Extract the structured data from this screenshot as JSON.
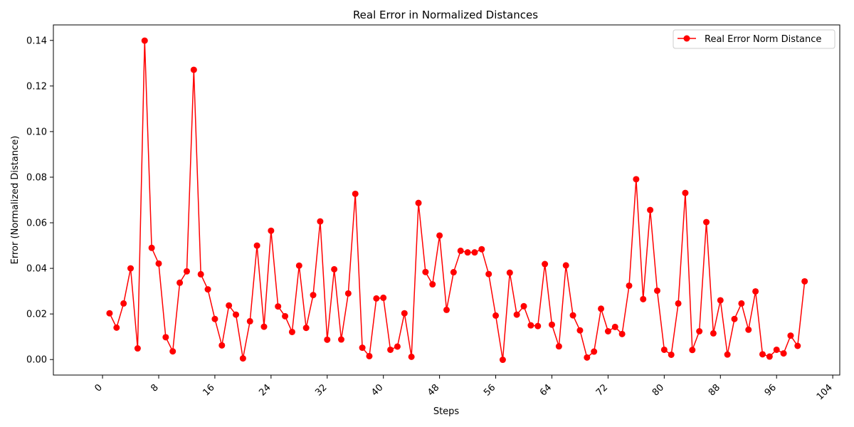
{
  "chart_data": {
    "type": "line",
    "title": "Real Error in Normalized Distances",
    "xlabel": "Steps",
    "ylabel": "Error (Normalized Distance)",
    "xlim": [
      -7,
      105
    ],
    "ylim": [
      -0.0068,
      0.1468
    ],
    "xticks": [
      0,
      8,
      16,
      24,
      32,
      40,
      48,
      56,
      64,
      72,
      80,
      88,
      96,
      104
    ],
    "xtick_labels": [
      "0",
      "8",
      "16",
      "24",
      "32",
      "40",
      "48",
      "56",
      "64",
      "72",
      "80",
      "88",
      "96",
      "104"
    ],
    "yticks": [
      0.0,
      0.02,
      0.04,
      0.06,
      0.08,
      0.1,
      0.12,
      0.14
    ],
    "ytick_labels": [
      "0.00",
      "0.02",
      "0.04",
      "0.06",
      "0.08",
      "0.10",
      "0.12",
      "0.14"
    ],
    "grid": false,
    "legend_position": "top-right",
    "color": "#ff0000",
    "series": [
      {
        "name": "Real Error Norm Distance",
        "x": [
          1,
          2,
          3,
          4,
          5,
          6,
          7,
          8,
          9,
          10,
          11,
          12,
          13,
          14,
          15,
          16,
          17,
          18,
          19,
          20,
          21,
          22,
          23,
          24,
          25,
          26,
          27,
          28,
          29,
          30,
          31,
          32,
          33,
          34,
          35,
          36,
          37,
          38,
          39,
          40,
          41,
          42,
          43,
          44,
          45,
          46,
          47,
          48,
          49,
          50,
          51,
          52,
          53,
          54,
          55,
          56,
          57,
          58,
          59,
          60,
          61,
          62,
          63,
          64,
          65,
          66,
          67,
          68,
          69,
          70,
          71,
          72,
          73,
          74,
          75,
          76,
          77,
          78,
          79,
          80,
          81,
          82,
          83,
          84,
          85,
          86,
          87,
          88,
          89,
          90,
          91,
          92,
          93,
          94,
          95,
          96,
          97,
          98,
          99,
          100
        ],
        "values": [
          0.0203,
          0.014,
          0.0246,
          0.04,
          0.0049,
          0.1399,
          0.049,
          0.0421,
          0.0098,
          0.0036,
          0.0337,
          0.0387,
          0.1271,
          0.0374,
          0.0308,
          0.0178,
          0.0062,
          0.0237,
          0.0197,
          0.0005,
          0.0168,
          0.05,
          0.0144,
          0.0565,
          0.0233,
          0.019,
          0.0121,
          0.0412,
          0.0139,
          0.0283,
          0.0606,
          0.0087,
          0.0396,
          0.0088,
          0.029,
          0.0727,
          0.0052,
          0.0015,
          0.0268,
          0.0271,
          0.0043,
          0.0057,
          0.0203,
          0.0012,
          0.0687,
          0.0384,
          0.033,
          0.0544,
          0.0218,
          0.0383,
          0.0477,
          0.047,
          0.047,
          0.0484,
          0.0375,
          0.0193,
          -0.0001,
          0.0381,
          0.0197,
          0.0234,
          0.015,
          0.0147,
          0.0419,
          0.0153,
          0.0058,
          0.0413,
          0.0194,
          0.0128,
          0.0009,
          0.0035,
          0.0223,
          0.0124,
          0.0143,
          0.0112,
          0.0324,
          0.0791,
          0.0265,
          0.0656,
          0.0302,
          0.0043,
          0.0021,
          0.0246,
          0.0731,
          0.0042,
          0.0124,
          0.0603,
          0.0115,
          0.026,
          0.0022,
          0.0178,
          0.0246,
          0.0131,
          0.0299,
          0.0023,
          0.0013,
          0.0043,
          0.0027,
          0.0105,
          0.006,
          0.0343
        ]
      }
    ]
  }
}
